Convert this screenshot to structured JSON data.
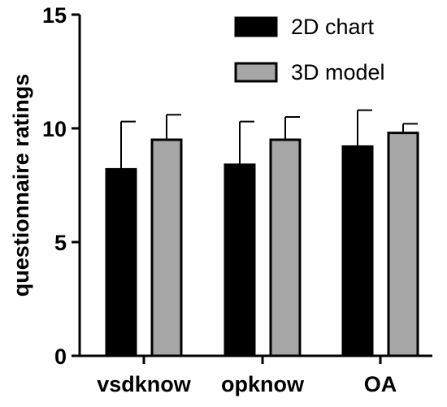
{
  "chart_data": {
    "type": "bar",
    "title": "",
    "xlabel": "",
    "ylabel": "questionnaire ratings",
    "ylim": [
      0,
      15
    ],
    "yticks": [
      0,
      5,
      10,
      15
    ],
    "categories": [
      "vsdknow",
      "opknow",
      "OA"
    ],
    "series": [
      {
        "name": "2D chart",
        "color": "#000000",
        "values": [
          8.2,
          8.4,
          9.2
        ],
        "error": [
          2.1,
          1.9,
          1.6
        ]
      },
      {
        "name": "3D model",
        "color": "#a6a6a6",
        "values": [
          9.5,
          9.5,
          9.8
        ],
        "error": [
          1.1,
          1.0,
          0.4
        ]
      }
    ],
    "legend_position": "top-right",
    "grid": false
  }
}
